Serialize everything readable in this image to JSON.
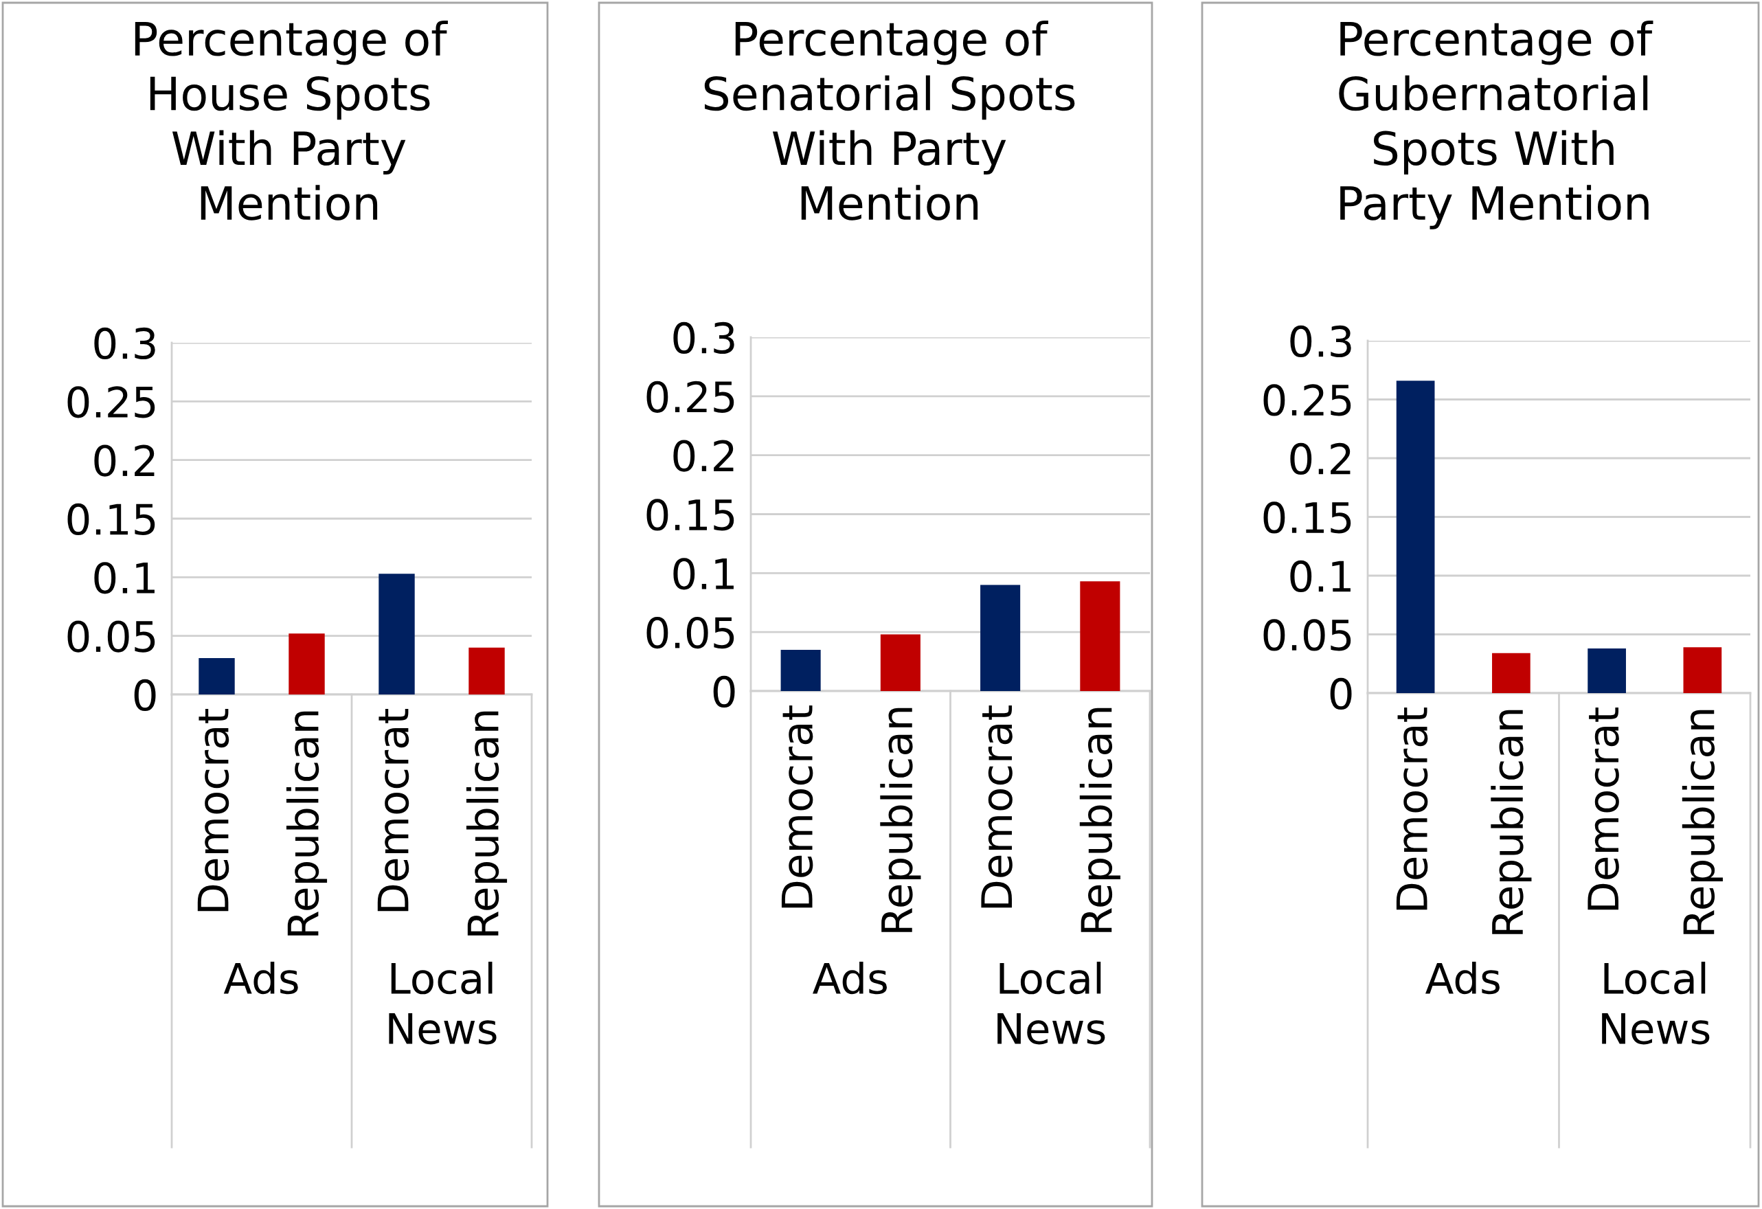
{
  "chart_data": [
    {
      "type": "bar",
      "title": "Percentage of\nHouse Spots\nWith Party\nMention",
      "categories": [
        "Democrat",
        "Republican",
        "Democrat",
        "Republican"
      ],
      "values": [
        0.031,
        0.052,
        0.103,
        0.04
      ],
      "colors": [
        "#002060",
        "#c00000",
        "#002060",
        "#c00000"
      ],
      "annotations": [
        "Ads",
        "Local\nNews"
      ],
      "ylim": [
        0,
        0.3
      ],
      "yticks": [
        0,
        0.05,
        0.1,
        0.15,
        0.2,
        0.25,
        0.3
      ],
      "grid": "y",
      "legend": false
    },
    {
      "type": "bar",
      "title": "Percentage of\nSenatorial Spots\nWith Party\nMention",
      "categories": [
        "Democrat",
        "Republican",
        "Democrat",
        "Republican"
      ],
      "values": [
        0.035,
        0.048,
        0.09,
        0.093
      ],
      "colors": [
        "#002060",
        "#c00000",
        "#002060",
        "#c00000"
      ],
      "annotations": [
        "Ads",
        "Local\nNews"
      ],
      "ylim": [
        0,
        0.3
      ],
      "yticks": [
        0,
        0.05,
        0.1,
        0.15,
        0.2,
        0.25,
        0.3
      ],
      "grid": "y",
      "legend": false
    },
    {
      "type": "bar",
      "title": "Percentage of\nGubernatorial\nSpots With\nParty Mention",
      "categories": [
        "Democrat",
        "Republican",
        "Democrat",
        "Republican"
      ],
      "values": [
        0.266,
        0.034,
        0.038,
        0.039
      ],
      "colors": [
        "#002060",
        "#c00000",
        "#002060",
        "#c00000"
      ],
      "annotations": [
        "Ads",
        "Local\nNews"
      ],
      "ylim": [
        0,
        0.3
      ],
      "yticks": [
        0,
        0.05,
        0.1,
        0.15,
        0.2,
        0.25,
        0.3
      ],
      "grid": "y",
      "legend": false
    }
  ]
}
